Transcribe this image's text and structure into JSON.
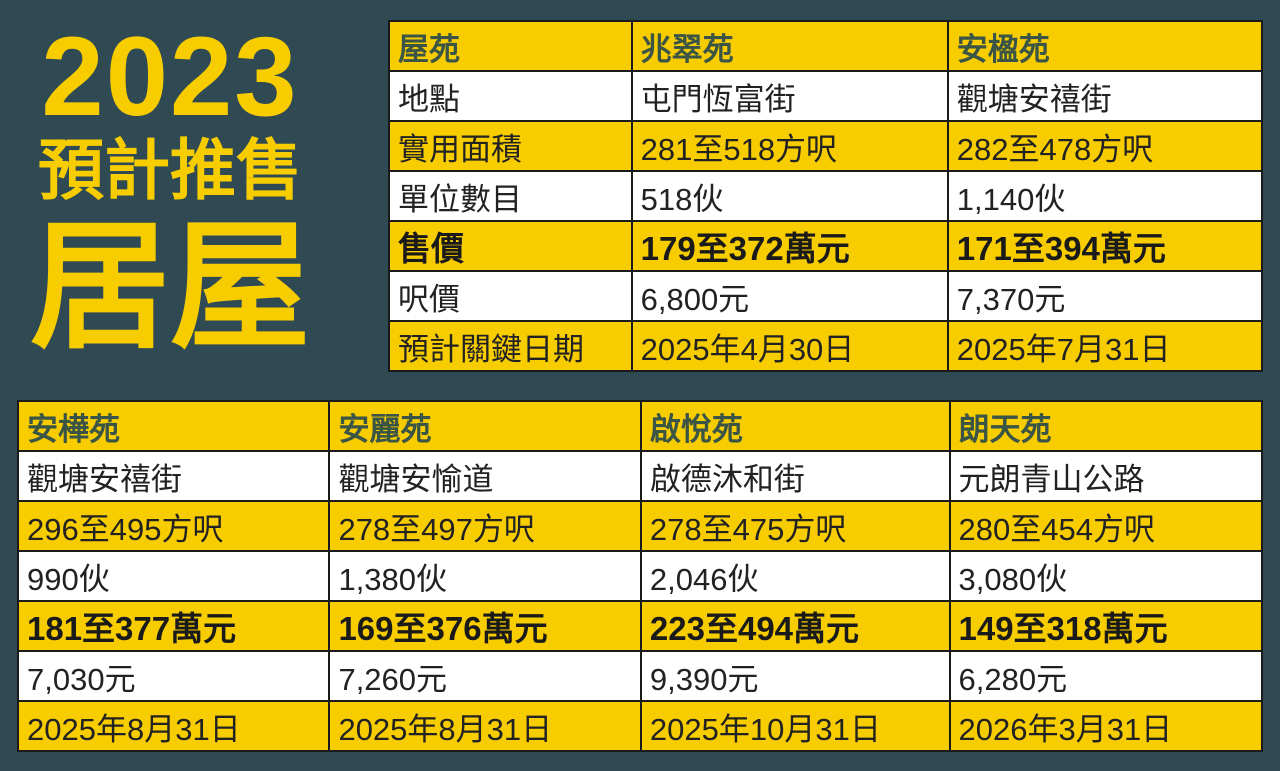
{
  "title": {
    "year": "2023",
    "line2": "預計推售",
    "line3": "居屋"
  },
  "colors": {
    "background": "#2f4a53",
    "accent": "#f8cd00",
    "header_text": "#3a5446"
  },
  "row_labels": [
    "屋苑",
    "地點",
    "實用面積",
    "單位數目",
    "售價",
    "呎價",
    "預計關鍵日期"
  ],
  "top_estates": [
    {
      "name": "兆翠苑",
      "location": "屯門恆富街",
      "area": "281至518方呎",
      "units": "518伙",
      "price": "179至372萬元",
      "psf": "6,800元",
      "date": "2025年4月30日"
    },
    {
      "name": "安楹苑",
      "location": "觀塘安禧街",
      "area": "282至478方呎",
      "units": "1,140伙",
      "price": "171至394萬元",
      "psf": "7,370元",
      "date": "2025年7月31日"
    }
  ],
  "bottom_estates": [
    {
      "name": "安樺苑",
      "location": "觀塘安禧街",
      "area": "296至495方呎",
      "units": "990伙",
      "price": "181至377萬元",
      "psf": "7,030元",
      "date": "2025年8月31日"
    },
    {
      "name": "安麗苑",
      "location": "觀塘安愉道",
      "area": "278至497方呎",
      "units": "1,380伙",
      "price": "169至376萬元",
      "psf": "7,260元",
      "date": "2025年8月31日"
    },
    {
      "name": "啟悅苑",
      "location": "啟德沐和街",
      "area": "278至475方呎",
      "units": "2,046伙",
      "price": "223至494萬元",
      "psf": "9,390元",
      "date": "2025年10月31日"
    },
    {
      "name": "朗天苑",
      "location": "元朗青山公路",
      "area": "280至454方呎",
      "units": "3,080伙",
      "price": "149至318萬元",
      "psf": "6,280元",
      "date": "2026年3月31日"
    }
  ]
}
